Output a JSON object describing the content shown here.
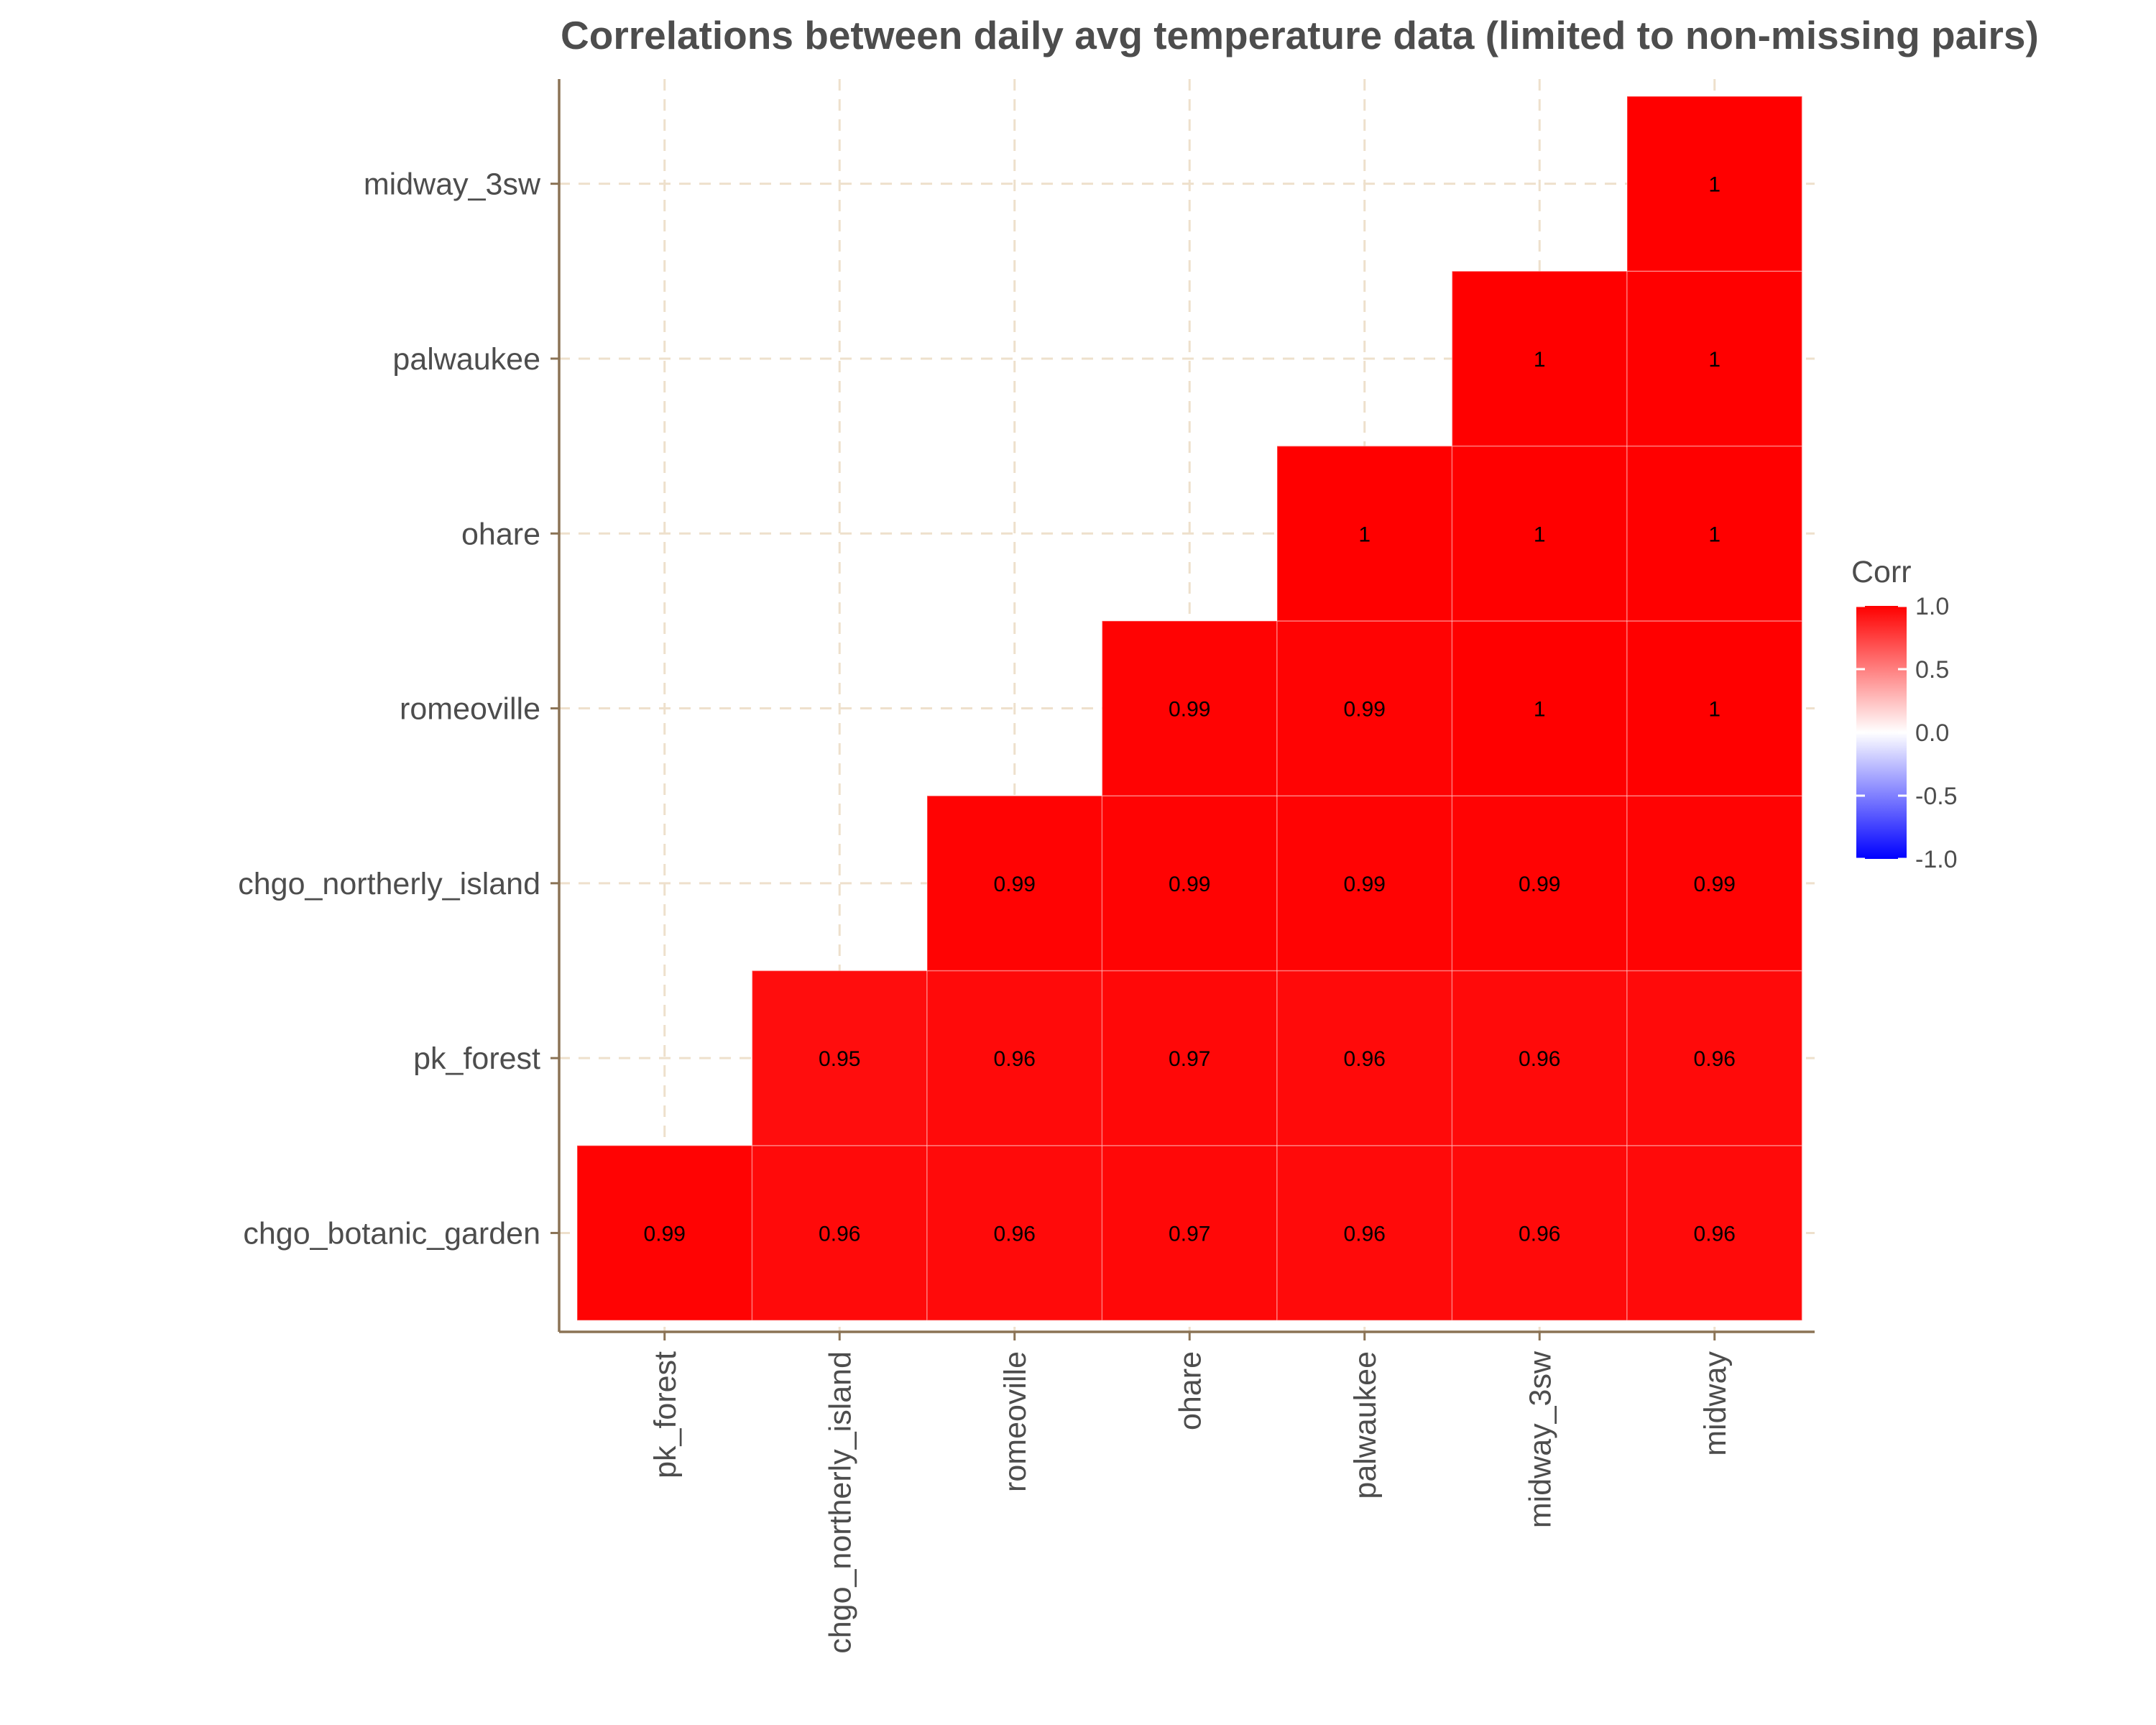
{
  "chart_data": {
    "type": "heatmap",
    "title": "Correlations between daily avg temperature data (limited to non-missing pairs)",
    "xlabel": "",
    "ylabel": "",
    "x_categories": [
      "pk_forest",
      "chgo_northerly_island",
      "romeoville",
      "ohare",
      "palwaukee",
      "midway_3sw",
      "midway"
    ],
    "y_categories": [
      "chgo_botanic_garden",
      "pk_forest",
      "chgo_northerly_island",
      "romeoville",
      "ohare",
      "palwaukee",
      "midway_3sw"
    ],
    "cells": [
      {
        "x": "pk_forest",
        "y": "chgo_botanic_garden",
        "value": 0.99,
        "label": "0.99"
      },
      {
        "x": "chgo_northerly_island",
        "y": "chgo_botanic_garden",
        "value": 0.96,
        "label": "0.96"
      },
      {
        "x": "romeoville",
        "y": "chgo_botanic_garden",
        "value": 0.96,
        "label": "0.96"
      },
      {
        "x": "ohare",
        "y": "chgo_botanic_garden",
        "value": 0.97,
        "label": "0.97"
      },
      {
        "x": "palwaukee",
        "y": "chgo_botanic_garden",
        "value": 0.96,
        "label": "0.96"
      },
      {
        "x": "midway_3sw",
        "y": "chgo_botanic_garden",
        "value": 0.96,
        "label": "0.96"
      },
      {
        "x": "midway",
        "y": "chgo_botanic_garden",
        "value": 0.96,
        "label": "0.96"
      },
      {
        "x": "chgo_northerly_island",
        "y": "pk_forest",
        "value": 0.95,
        "label": "0.95"
      },
      {
        "x": "romeoville",
        "y": "pk_forest",
        "value": 0.96,
        "label": "0.96"
      },
      {
        "x": "ohare",
        "y": "pk_forest",
        "value": 0.97,
        "label": "0.97"
      },
      {
        "x": "palwaukee",
        "y": "pk_forest",
        "value": 0.96,
        "label": "0.96"
      },
      {
        "x": "midway_3sw",
        "y": "pk_forest",
        "value": 0.96,
        "label": "0.96"
      },
      {
        "x": "midway",
        "y": "pk_forest",
        "value": 0.96,
        "label": "0.96"
      },
      {
        "x": "romeoville",
        "y": "chgo_northerly_island",
        "value": 0.99,
        "label": "0.99"
      },
      {
        "x": "ohare",
        "y": "chgo_northerly_island",
        "value": 0.99,
        "label": "0.99"
      },
      {
        "x": "palwaukee",
        "y": "chgo_northerly_island",
        "value": 0.99,
        "label": "0.99"
      },
      {
        "x": "midway_3sw",
        "y": "chgo_northerly_island",
        "value": 0.99,
        "label": "0.99"
      },
      {
        "x": "midway",
        "y": "chgo_northerly_island",
        "value": 0.99,
        "label": "0.99"
      },
      {
        "x": "ohare",
        "y": "romeoville",
        "value": 0.99,
        "label": "0.99"
      },
      {
        "x": "palwaukee",
        "y": "romeoville",
        "value": 0.99,
        "label": "0.99"
      },
      {
        "x": "midway_3sw",
        "y": "romeoville",
        "value": 1.0,
        "label": "1"
      },
      {
        "x": "midway",
        "y": "romeoville",
        "value": 1.0,
        "label": "1"
      },
      {
        "x": "palwaukee",
        "y": "ohare",
        "value": 1.0,
        "label": "1"
      },
      {
        "x": "midway_3sw",
        "y": "ohare",
        "value": 1.0,
        "label": "1"
      },
      {
        "x": "midway",
        "y": "ohare",
        "value": 1.0,
        "label": "1"
      },
      {
        "x": "midway_3sw",
        "y": "palwaukee",
        "value": 1.0,
        "label": "1"
      },
      {
        "x": "midway",
        "y": "palwaukee",
        "value": 1.0,
        "label": "1"
      },
      {
        "x": "midway",
        "y": "midway_3sw",
        "value": 1.0,
        "label": "1"
      }
    ],
    "legend": {
      "title": "Corr",
      "placement": "right",
      "range": [
        -1,
        1
      ],
      "ticks": [
        1.0,
        0.5,
        0.0,
        -0.5,
        -1.0
      ],
      "tick_labels": [
        "1.0",
        "0.5",
        "0.0",
        "-0.5",
        "-1.0"
      ]
    },
    "colors": {
      "low": "#0000ff",
      "mid": "#ffffff",
      "high": "#ff0000",
      "axis_line": "#8b7355",
      "gridline": "#eee0cc"
    },
    "grid": true
  }
}
